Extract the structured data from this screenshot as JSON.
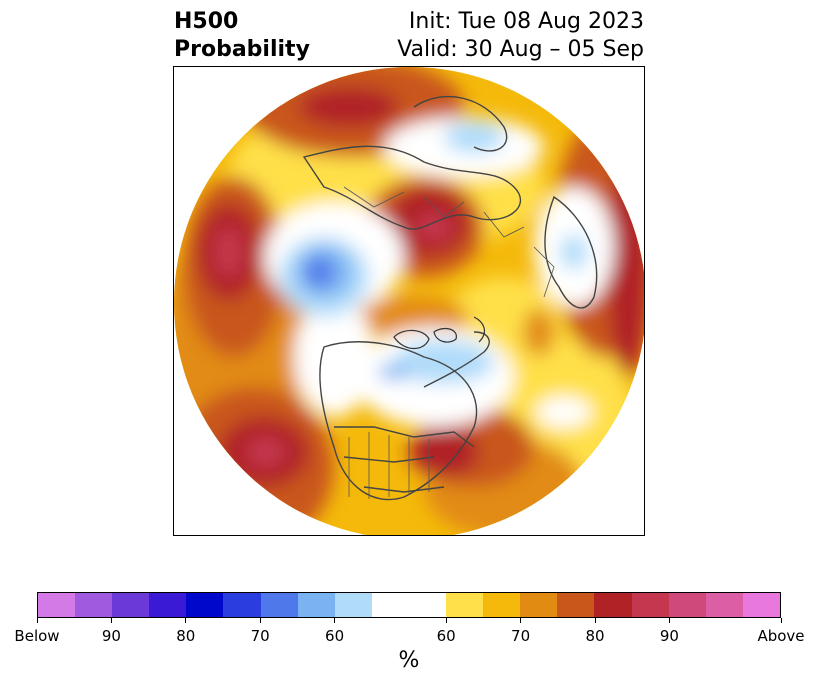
{
  "title": {
    "left_line1": "H500",
    "left_line2": "Probability",
    "right_line1": "Init: Tue 08 Aug 2023",
    "right_line2": "Valid: 30 Aug – 05 Sep"
  },
  "colorbar": {
    "unit": "%",
    "colors_below": [
      "#d37ae6",
      "#a05ae0",
      "#6a39d8",
      "#3a1ad4",
      "#0008cc",
      "#2a3ee0",
      "#4f78ea",
      "#7ab2f2",
      "#b0dcfa"
    ],
    "neutral_color": "#ffffff",
    "colors_above": [
      "#ffe04a",
      "#f4b90a",
      "#e28b12",
      "#c9571c",
      "#b02226",
      "#c4374e",
      "#cf4a7a",
      "#dc5fa6",
      "#e878de"
    ],
    "tick_labels": [
      "Below",
      "90",
      "80",
      "70",
      "60",
      "60",
      "70",
      "80",
      "90",
      "Above"
    ]
  },
  "map": {
    "projection": "north-polar-stereographic",
    "variable": "500 hPa height probability"
  }
}
